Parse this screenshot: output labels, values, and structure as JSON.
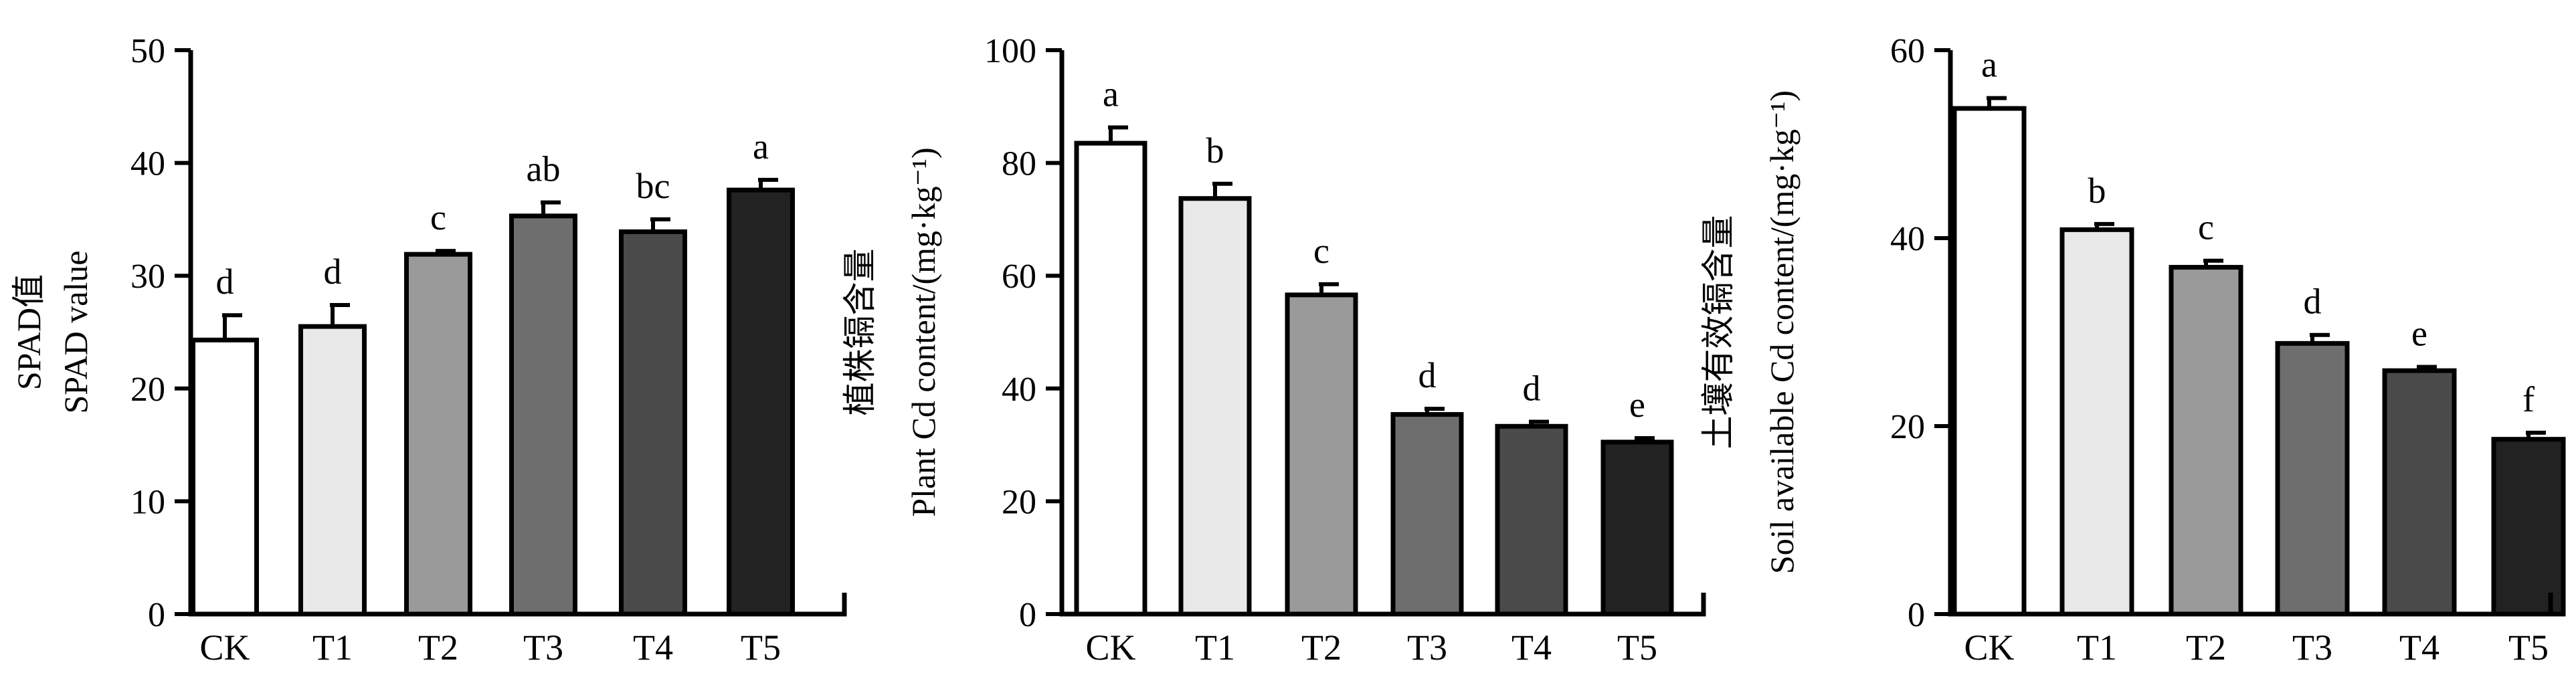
{
  "chart_data": [
    {
      "type": "bar",
      "categories": [
        "CK",
        "T1",
        "T2",
        "T3",
        "T4",
        "T5"
      ],
      "values": [
        24.3,
        25.5,
        31.9,
        35.3,
        33.9,
        37.6
      ],
      "errors": [
        2.2,
        1.9,
        0.3,
        1.2,
        1.1,
        0.9
      ],
      "letters": [
        "d",
        "d",
        "c",
        "ab",
        "bc",
        "a"
      ],
      "ylabel_lines": [
        "SPAD值",
        "SPAD value"
      ],
      "yticks": [
        0,
        10,
        20,
        30,
        40,
        50
      ],
      "ylim": [
        0,
        50
      ],
      "colors": [
        "#ffffff",
        "#e8e8e8",
        "#9a9a9a",
        "#6e6e6e",
        "#4a4a4a",
        "#222222"
      ]
    },
    {
      "type": "bar",
      "categories": [
        "CK",
        "T1",
        "T2",
        "T3",
        "T4",
        "T5"
      ],
      "values": [
        83.5,
        73.7,
        56.6,
        35.4,
        33.3,
        30.5
      ],
      "errors": [
        2.8,
        2.6,
        1.9,
        1.0,
        0.8,
        0.7
      ],
      "letters": [
        "a",
        "b",
        "c",
        "d",
        "d",
        "e"
      ],
      "ylabel_lines": [
        "植株镉含量",
        "Plant Cd content/(mg·kg⁻¹)"
      ],
      "yticks": [
        0,
        20,
        40,
        60,
        80,
        100
      ],
      "ylim": [
        0,
        100
      ],
      "colors": [
        "#ffffff",
        "#e8e8e8",
        "#9a9a9a",
        "#6e6e6e",
        "#4a4a4a",
        "#222222"
      ]
    },
    {
      "type": "bar",
      "categories": [
        "CK",
        "T1",
        "T2",
        "T3",
        "T4",
        "T5"
      ],
      "values": [
        53.8,
        40.9,
        36.9,
        28.8,
        25.9,
        18.6
      ],
      "errors": [
        1.1,
        0.6,
        0.7,
        0.9,
        0.4,
        0.7
      ],
      "letters": [
        "a",
        "b",
        "c",
        "d",
        "e",
        "f"
      ],
      "ylabel_lines": [
        "土壤有效镉含量",
        "Soil available Cd content/(mg·kg⁻¹)"
      ],
      "yticks": [
        0,
        20,
        40,
        60
      ],
      "ylim": [
        0,
        60
      ],
      "colors": [
        "#ffffff",
        "#e8e8e8",
        "#9a9a9a",
        "#6e6e6e",
        "#4a4a4a",
        "#222222"
      ]
    }
  ]
}
